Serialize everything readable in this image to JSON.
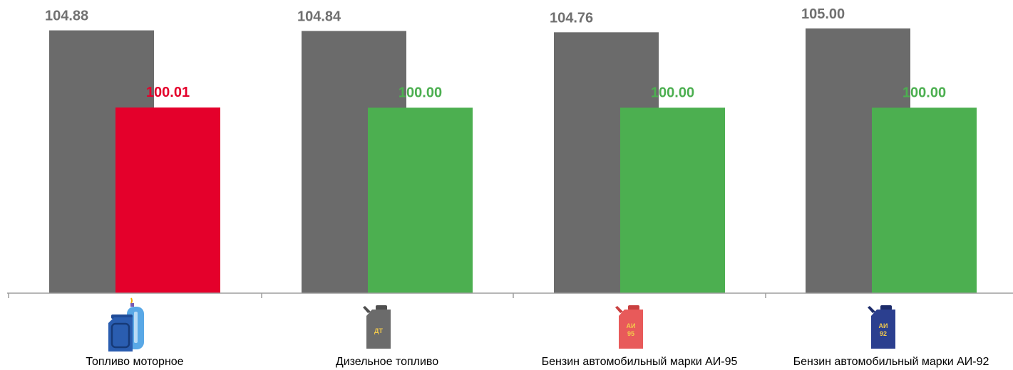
{
  "chart_data": {
    "type": "bar",
    "categories": [
      "Топливо моторное",
      "Дизельное топливо",
      "Бензин автомобильный марки АИ-95",
      "Бензин автомобильный марки АИ-92"
    ],
    "series": [
      {
        "values": [
          104.88,
          104.84,
          104.76,
          105.0
        ],
        "labels": [
          "104.88",
          "104.84",
          "104.76",
          "105.00"
        ]
      },
      {
        "values": [
          100.01,
          100.0,
          100.0,
          100.0
        ],
        "labels": [
          "100.01",
          "100.00",
          "100.00",
          "100.00"
        ]
      }
    ],
    "ylim": [
      88.3,
      105.0
    ],
    "grid": false,
    "legend": "none",
    "colors": {
      "series1": "#6b6b6b",
      "series1_label": "#707070",
      "series2": [
        "#e4002b",
        "#4caf50",
        "#4caf50",
        "#4caf50"
      ],
      "axis": "#9e9e9e"
    },
    "icons": [
      {
        "name": "canister-gas-cylinder-icon",
        "label": ""
      },
      {
        "name": "diesel-canister-icon",
        "label": "ДТ"
      },
      {
        "name": "ai95-canister-icon",
        "label": "АИ 95"
      },
      {
        "name": "ai92-canister-icon",
        "label": "АИ 92"
      }
    ]
  }
}
